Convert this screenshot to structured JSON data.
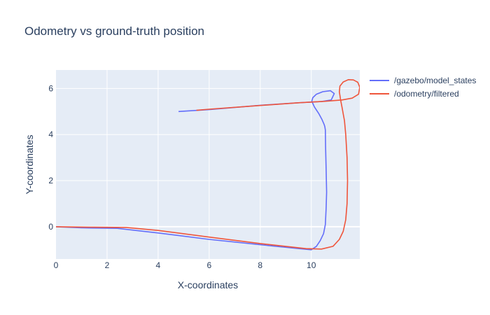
{
  "chart_data": {
    "type": "line",
    "title": "Odometry vs ground-truth position",
    "xlabel": "X-coordinates",
    "ylabel": "Y-coordinates",
    "xlim": [
      0,
      11.9
    ],
    "ylim": [
      -1.4,
      6.8
    ],
    "x_ticks": [
      0,
      2,
      4,
      6,
      8,
      10
    ],
    "y_ticks": [
      0,
      2,
      4,
      6
    ],
    "grid": true,
    "legend_position": "top-right",
    "series": [
      {
        "name": "/gazebo/model_states",
        "color": "#636efa",
        "x": [
          0,
          1.0,
          2.4,
          4.0,
          6.0,
          8.0,
          9.6,
          10.0,
          10.2,
          10.35,
          10.48,
          10.55,
          10.58,
          10.6,
          10.58,
          10.56,
          10.55,
          10.53,
          10.5,
          10.42,
          10.3,
          10.12,
          10.02,
          10.06,
          10.2,
          10.45,
          10.75,
          10.9,
          10.78,
          10.4,
          9.5,
          8.0,
          6.0,
          4.8
        ],
        "y": [
          0,
          -0.05,
          -0.07,
          -0.27,
          -0.55,
          -0.78,
          -0.96,
          -1.0,
          -0.85,
          -0.6,
          -0.3,
          0.1,
          0.8,
          1.5,
          2.5,
          3.5,
          4.2,
          4.35,
          4.45,
          4.65,
          4.9,
          5.2,
          5.45,
          5.6,
          5.75,
          5.86,
          5.9,
          5.78,
          5.5,
          5.43,
          5.38,
          5.27,
          5.08,
          5.0
        ]
      },
      {
        "name": "/odometry/filtered",
        "color": "#ef553b",
        "x": [
          0,
          1.5,
          2.75,
          4.0,
          6.0,
          8.0,
          9.8,
          10.4,
          10.85,
          11.1,
          11.25,
          11.35,
          11.4,
          11.42,
          11.4,
          11.35,
          11.3,
          11.25,
          11.2,
          11.15,
          11.1,
          11.12,
          11.25,
          11.45,
          11.65,
          11.82,
          11.9,
          11.85,
          11.6,
          11.2,
          10.5,
          9.5,
          8.0,
          6.0,
          5.5
        ],
        "y": [
          0,
          -0.02,
          -0.03,
          -0.16,
          -0.45,
          -0.73,
          -0.95,
          -0.97,
          -0.85,
          -0.55,
          -0.2,
          0.3,
          1.0,
          2.0,
          3.0,
          4.0,
          4.6,
          4.9,
          5.2,
          5.5,
          5.85,
          6.1,
          6.28,
          6.38,
          6.37,
          6.27,
          6.05,
          5.75,
          5.58,
          5.5,
          5.44,
          5.38,
          5.26,
          5.1,
          5.05
        ]
      }
    ]
  }
}
